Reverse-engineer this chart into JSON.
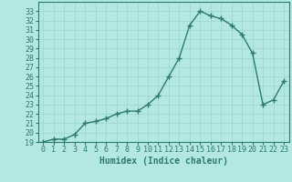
{
  "x": [
    0,
    1,
    2,
    3,
    4,
    5,
    6,
    7,
    8,
    9,
    10,
    11,
    12,
    13,
    14,
    15,
    16,
    17,
    18,
    19,
    20,
    21,
    22,
    23
  ],
  "y": [
    19.0,
    19.3,
    19.3,
    19.8,
    21.0,
    21.2,
    21.5,
    22.0,
    22.3,
    22.3,
    23.0,
    24.0,
    26.0,
    28.0,
    31.5,
    33.0,
    32.5,
    32.2,
    31.5,
    30.5,
    28.5,
    23.0,
    23.5,
    25.5
  ],
  "line_color": "#2d7a6e",
  "marker": "+",
  "markersize": 4,
  "linewidth": 1.0,
  "bg_color": "#b2e8e0",
  "grid_color": "#a0d8d0",
  "xlabel": "Humidex (Indice chaleur)",
  "ylabel": "",
  "ylim": [
    19,
    34
  ],
  "xlim": [
    -0.5,
    23.5
  ],
  "yticks": [
    19,
    20,
    21,
    22,
    23,
    24,
    25,
    26,
    27,
    28,
    29,
    30,
    31,
    32,
    33
  ],
  "xticks": [
    0,
    1,
    2,
    3,
    4,
    5,
    6,
    7,
    8,
    9,
    10,
    11,
    12,
    13,
    14,
    15,
    16,
    17,
    18,
    19,
    20,
    21,
    22,
    23
  ],
  "tick_fontsize": 6,
  "xlabel_fontsize": 7,
  "tick_color": "#2d7a6e",
  "spine_color": "#2d7a6e"
}
